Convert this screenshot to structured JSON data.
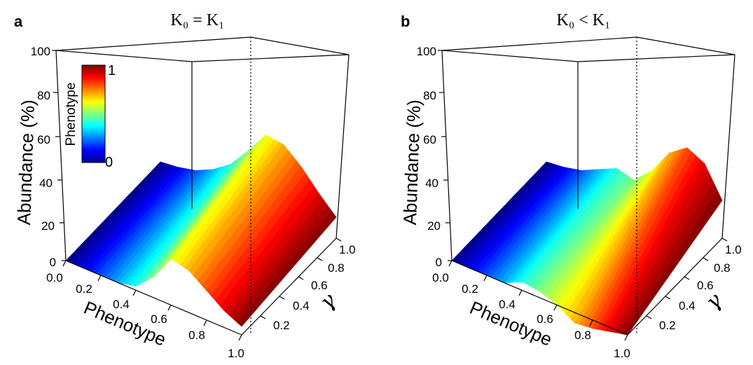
{
  "chart_data": [
    {
      "type": "surface3d",
      "panel_label": "a",
      "title": "K₀ = K₁",
      "xlabel": "Phenotype",
      "ylabel": "γ",
      "zlabel": "Abundance (%)",
      "x_ticks": [
        "0.0",
        "0.2",
        "0.4",
        "0.6",
        "0.8",
        "1.0"
      ],
      "y_ticks": [
        "0.2",
        "0.4",
        "0.6",
        "0.8",
        "1.0"
      ],
      "z_ticks": [
        "0",
        "20",
        "40",
        "60",
        "80",
        "100"
      ],
      "xlim": [
        0,
        1
      ],
      "ylim": [
        0,
        1
      ],
      "zlim": [
        0,
        100
      ],
      "phenotype": [
        0.0,
        0.1,
        0.2,
        0.3,
        0.4,
        0.5,
        0.6,
        0.7,
        0.8,
        0.9,
        1.0
      ],
      "abundance_at_gamma_1": [
        1,
        2,
        4,
        8,
        14,
        24,
        35,
        34,
        27,
        18,
        10
      ],
      "abundance_at_gamma_0": [
        0,
        0,
        0,
        0,
        2,
        10,
        22,
        20,
        14,
        8,
        4
      ],
      "colorbar": {
        "title": "Phenotype",
        "min_label": "0",
        "max_label": "1"
      }
    },
    {
      "type": "surface3d",
      "panel_label": "b",
      "title": "K₀ < K₁",
      "xlabel": "Phenotype",
      "ylabel": "γ",
      "zlabel": "Abundance (%)",
      "x_ticks": [
        "0.0",
        "0.2",
        "0.4",
        "0.6",
        "0.8",
        "1.0"
      ],
      "y_ticks": [
        "0.2",
        "0.4",
        "0.6",
        "0.8",
        "1.0"
      ],
      "z_ticks": [
        "0",
        "20",
        "40",
        "60",
        "80",
        "100"
      ],
      "xlim": [
        0,
        1
      ],
      "ylim": [
        0,
        1
      ],
      "zlim": [
        0,
        100
      ],
      "phenotype": [
        0.0,
        0.1,
        0.2,
        0.3,
        0.4,
        0.5,
        0.6,
        0.7,
        0.8,
        0.9,
        1.0
      ],
      "abundance_at_gamma_1": [
        1,
        2,
        4,
        8,
        12,
        10,
        18,
        30,
        36,
        32,
        18
      ],
      "abundance_at_gamma_0": [
        0,
        0,
        0,
        0,
        4,
        3,
        0,
        -5,
        -4,
        -2,
        0
      ]
    }
  ]
}
